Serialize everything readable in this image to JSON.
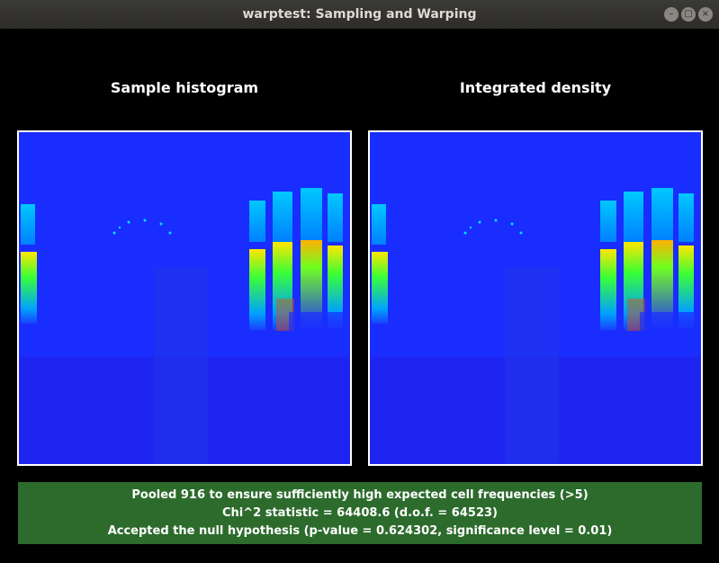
{
  "window": {
    "title": "warptest: Sampling and Warping"
  },
  "panels": {
    "left_title": "Sample histogram",
    "right_title": "Integrated density"
  },
  "status": {
    "line1": "Pooled 916 to ensure sufficiently high expected cell frequencies (>5)",
    "line2": "Chi^2 statistic = 64408.6 (d.o.f. = 64523)",
    "line3": "Accepted the null hypothesis (p-value = 0.624302, significance level = 0.01)"
  },
  "colors": {
    "status_bg": "#2d6b2d",
    "heatmap_base": "#1a2dff"
  }
}
